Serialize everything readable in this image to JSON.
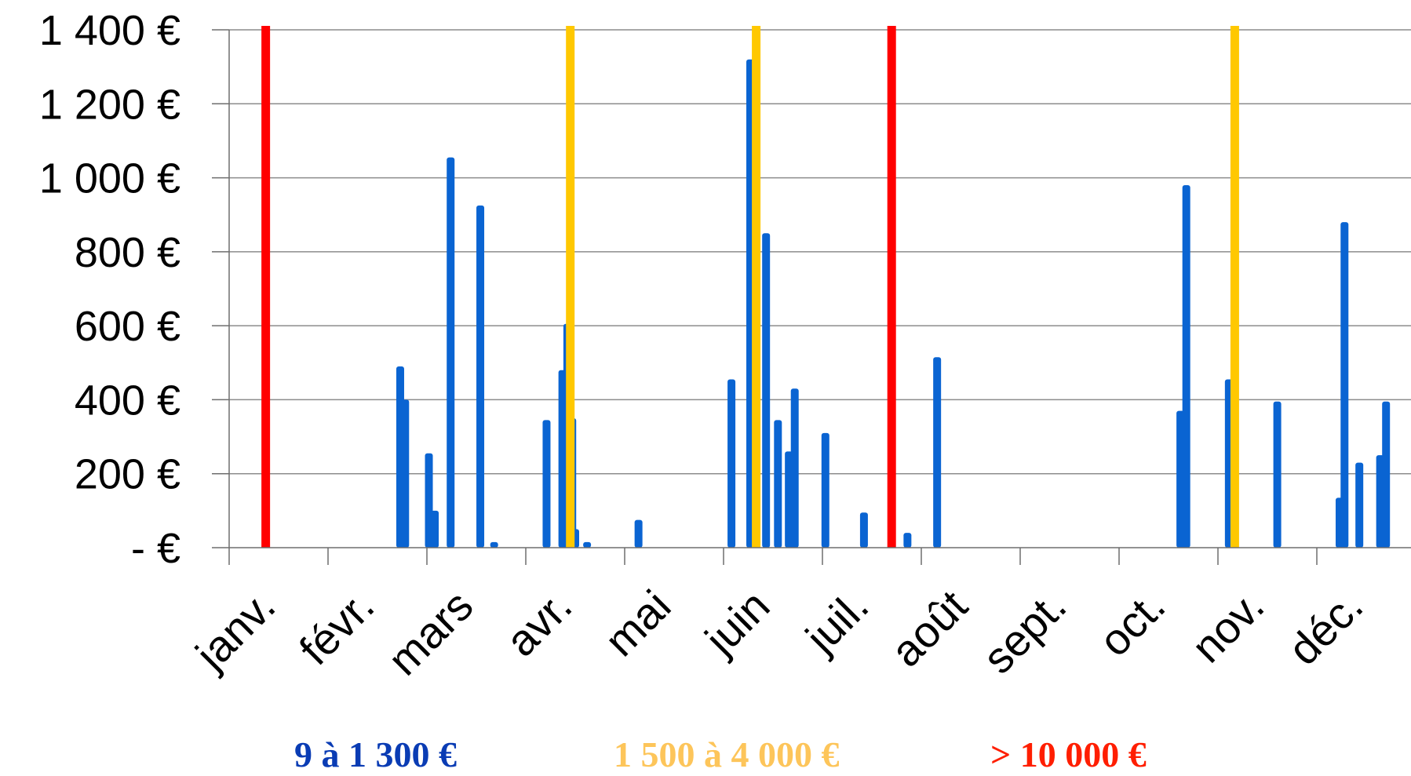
{
  "chart_data": {
    "type": "bar",
    "title": "",
    "xlabel": "",
    "ylabel": "",
    "ylim": [
      0,
      1400
    ],
    "y_ticks": [
      {
        "value": 0,
        "label": "- €"
      },
      {
        "value": 200,
        "label": "200 €"
      },
      {
        "value": 400,
        "label": "400 €"
      },
      {
        "value": 600,
        "label": "600 €"
      },
      {
        "value": 800,
        "label": "800 €"
      },
      {
        "value": 1000,
        "label": "1 000 €"
      },
      {
        "value": 1200,
        "label": "1 200 €"
      },
      {
        "value": 1400,
        "label": "1 400 €"
      }
    ],
    "x_months": [
      "janv.",
      "févr.",
      "mars",
      "avr.",
      "mai",
      "juin",
      "juil.",
      "août",
      "sept.",
      "oct.",
      "nov.",
      "déc."
    ],
    "grid": true,
    "series": [
      {
        "color": "#0a64d2",
        "points": [
          {
            "x": 1.73,
            "y": 490
          },
          {
            "x": 1.78,
            "y": 400
          },
          {
            "x": 2.02,
            "y": 255
          },
          {
            "x": 2.08,
            "y": 100
          },
          {
            "x": 2.24,
            "y": 1055
          },
          {
            "x": 2.54,
            "y": 925
          },
          {
            "x": 2.68,
            "y": 15
          },
          {
            "x": 3.21,
            "y": 345
          },
          {
            "x": 3.37,
            "y": 480
          },
          {
            "x": 3.42,
            "y": 605
          },
          {
            "x": 3.47,
            "y": 350
          },
          {
            "x": 3.5,
            "y": 50
          },
          {
            "x": 3.62,
            "y": 15
          },
          {
            "x": 4.14,
            "y": 75
          },
          {
            "x": 5.08,
            "y": 455
          },
          {
            "x": 5.27,
            "y": 1320
          },
          {
            "x": 5.43,
            "y": 850
          },
          {
            "x": 5.55,
            "y": 345
          },
          {
            "x": 5.66,
            "y": 260
          },
          {
            "x": 5.72,
            "y": 430
          },
          {
            "x": 6.03,
            "y": 310
          },
          {
            "x": 6.42,
            "y": 95
          },
          {
            "x": 6.86,
            "y": 40
          },
          {
            "x": 7.16,
            "y": 515
          },
          {
            "x": 9.62,
            "y": 370
          },
          {
            "x": 9.68,
            "y": 980
          },
          {
            "x": 10.11,
            "y": 455
          },
          {
            "x": 10.6,
            "y": 395
          },
          {
            "x": 11.23,
            "y": 135
          },
          {
            "x": 11.28,
            "y": 880
          },
          {
            "x": 11.43,
            "y": 230
          },
          {
            "x": 11.64,
            "y": 250
          },
          {
            "x": 11.7,
            "y": 395
          }
        ]
      },
      {
        "color": "#ffc800",
        "clipped_at_ylim": true,
        "points": [
          {
            "x": 3.45,
            "y": 1400
          },
          {
            "x": 5.33,
            "y": 1400
          },
          {
            "x": 10.17,
            "y": 1400
          }
        ]
      },
      {
        "color": "#ff0000",
        "clipped_at_ylim": true,
        "points": [
          {
            "x": 0.37,
            "y": 1400
          },
          {
            "x": 6.7,
            "y": 1400
          }
        ]
      }
    ],
    "legend": [
      {
        "label": "9 à 1 300 €",
        "color": "#0a3cb4"
      },
      {
        "label": "1 500 à 4 000 €",
        "color": "#fdc55a"
      },
      {
        "label": "> 10 000 €",
        "color": "#ff1e00"
      }
    ]
  }
}
